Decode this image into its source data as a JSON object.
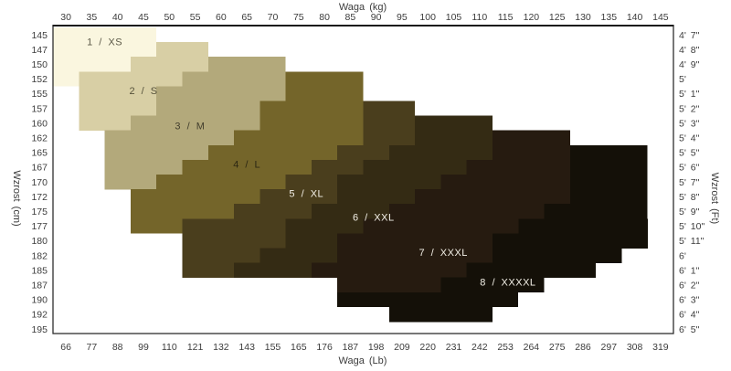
{
  "page": {
    "background": "#ffffff",
    "border_color": "#2e2e2e",
    "tick_color": "#3c3c3c"
  },
  "axes": {
    "top": {
      "title": "Waga  (kg)",
      "ticks": [
        30,
        35,
        40,
        45,
        50,
        55,
        60,
        65,
        70,
        75,
        80,
        85,
        90,
        95,
        100,
        105,
        110,
        115,
        120,
        125,
        130,
        135,
        140,
        145
      ]
    },
    "bottom": {
      "title": "Waga  (Lb)",
      "ticks": [
        66,
        77,
        88,
        99,
        110,
        121,
        132,
        143,
        155,
        165,
        176,
        187,
        198,
        209,
        220,
        231,
        242,
        253,
        264,
        275,
        286,
        297,
        308,
        319
      ]
    },
    "left": {
      "title": "Wzrost  (cm)",
      "ticks": [
        145,
        147,
        150,
        152,
        155,
        157,
        160,
        162,
        165,
        167,
        170,
        172,
        175,
        177,
        180,
        182,
        185,
        187,
        190,
        192,
        195
      ]
    },
    "right": {
      "title": "Wzrost  (Ft)",
      "ticks": [
        "4' 7\"",
        "4' 8\"",
        "4' 9\"",
        "5'",
        "5' 1\"",
        "5' 2\"",
        "5' 3\"",
        "5' 4\"",
        "5' 5\"",
        "5' 6\"",
        "5' 7\"",
        "5' 8\"",
        "5' 9\"",
        "5' 10\"",
        "5' 11\"",
        "6'",
        "6' 1\"",
        "6' 2\"",
        "6' 3\"",
        "6' 4\"",
        "6' 5\""
      ]
    }
  },
  "chart_data": {
    "type": "heatmap",
    "subtype": "stepped-size-region-map",
    "x_axis": {
      "label": "Waga (kg)",
      "range_kg": [
        27.5,
        147.5
      ],
      "secondary_label": "Waga (Lb)"
    },
    "y_axis": {
      "label": "Wzrost (cm)",
      "range_cm": [
        143.75,
        196.25
      ],
      "secondary_label": "Wzrost (Ft)",
      "row_height_cm": 2.5
    },
    "rows_format": "[heightRowIndex (0 = 145 cm row, step 2.5 cm), kgFrom, kgTo]",
    "bands": [
      {
        "num": 1,
        "size": "XS",
        "label": "1 / XS",
        "color": "#faf6df",
        "label_color": "#5d5a49",
        "label_at": {
          "kg": 37.5,
          "cm": 146.2
        },
        "rows": [
          [
            0,
            27.5,
            47.5
          ],
          [
            1,
            27.5,
            47.5
          ],
          [
            2,
            27.5,
            42.5
          ],
          [
            3,
            27.5,
            32.5
          ]
        ]
      },
      {
        "num": 2,
        "size": "S",
        "label": "2 / S",
        "color": "#d8cfa5",
        "label_color": "#56523b",
        "label_at": {
          "kg": 45,
          "cm": 154.5
        },
        "rows": [
          [
            1,
            47.5,
            57.5
          ],
          [
            2,
            42.5,
            57.5
          ],
          [
            3,
            32.5,
            52.5
          ],
          [
            4,
            32.5,
            47.5
          ],
          [
            5,
            32.5,
            47.5
          ],
          [
            6,
            32.5,
            42.5
          ]
        ]
      },
      {
        "num": 3,
        "size": "M",
        "label": "3 / M",
        "color": "#b3a97b",
        "label_color": "#423e2d",
        "label_at": {
          "kg": 54,
          "cm": 160.5
        },
        "rows": [
          [
            2,
            57.5,
            72.5
          ],
          [
            3,
            52.5,
            72.5
          ],
          [
            4,
            47.5,
            72.5
          ],
          [
            5,
            47.5,
            67.5
          ],
          [
            6,
            42.5,
            67.5
          ],
          [
            7,
            37.5,
            62.5
          ],
          [
            8,
            37.5,
            57.5
          ],
          [
            9,
            37.5,
            52.5
          ],
          [
            10,
            37.5,
            47.5
          ]
        ]
      },
      {
        "num": 4,
        "size": "L",
        "label": "4 / L",
        "color": "#74652a",
        "label_color": "#2c2713",
        "label_at": {
          "kg": 65,
          "cm": 167
        },
        "rows": [
          [
            3,
            72.5,
            87.5
          ],
          [
            4,
            72.5,
            87.5
          ],
          [
            5,
            67.5,
            87.5
          ],
          [
            6,
            67.5,
            87.5
          ],
          [
            7,
            62.5,
            87.5
          ],
          [
            8,
            57.5,
            82.5
          ],
          [
            9,
            52.5,
            77.5
          ],
          [
            10,
            47.5,
            72.5
          ],
          [
            11,
            42.5,
            67.5
          ],
          [
            12,
            42.5,
            62.5
          ],
          [
            13,
            42.5,
            52.5
          ]
        ]
      },
      {
        "num": 5,
        "size": "XL",
        "label": "5 / XL",
        "color": "#4a3e1d",
        "label_color": "#f3f0e7",
        "label_at": {
          "kg": 76.5,
          "cm": 172
        },
        "rows": [
          [
            5,
            87.5,
            97.5
          ],
          [
            6,
            87.5,
            97.5
          ],
          [
            7,
            87.5,
            97.5
          ],
          [
            8,
            82.5,
            92.5
          ],
          [
            9,
            77.5,
            87.5
          ],
          [
            10,
            72.5,
            82.5
          ],
          [
            11,
            67.5,
            82.5
          ],
          [
            12,
            62.5,
            77.5
          ],
          [
            13,
            52.5,
            72.5
          ],
          [
            14,
            52.5,
            72.5
          ],
          [
            15,
            52.5,
            67.5
          ],
          [
            16,
            52.5,
            62.5
          ]
        ]
      },
      {
        "num": 6,
        "size": "XXL",
        "label": "6 / XXL",
        "color": "#342b14",
        "label_color": "#f3f0e7",
        "label_at": {
          "kg": 89.5,
          "cm": 176
        },
        "rows": [
          [
            6,
            97.5,
            112.5
          ],
          [
            7,
            97.5,
            112.5
          ],
          [
            8,
            92.5,
            112.5
          ],
          [
            9,
            87.5,
            107.5
          ],
          [
            10,
            82.5,
            102.5
          ],
          [
            11,
            82.5,
            97.5
          ],
          [
            12,
            77.5,
            92.5
          ],
          [
            13,
            72.5,
            87.5
          ],
          [
            14,
            72.5,
            82.5
          ],
          [
            15,
            67.5,
            82.5
          ],
          [
            16,
            62.5,
            77.5
          ]
        ]
      },
      {
        "num": 7,
        "size": "XXXL",
        "label": "7 / XXXL",
        "color": "#261b10",
        "label_color": "#f3f0e7",
        "label_at": {
          "kg": 103,
          "cm": 182
        },
        "rows": [
          [
            7,
            112.5,
            127.5
          ],
          [
            8,
            112.5,
            127.5
          ],
          [
            9,
            107.5,
            127.5
          ],
          [
            10,
            102.5,
            127.5
          ],
          [
            11,
            97.5,
            127.5
          ],
          [
            12,
            92.5,
            122.5
          ],
          [
            13,
            87.5,
            117.5
          ],
          [
            14,
            82.5,
            112.5
          ],
          [
            15,
            82.5,
            112.5
          ],
          [
            16,
            77.5,
            107.5
          ],
          [
            17,
            82.5,
            102.5
          ]
        ]
      },
      {
        "num": 8,
        "size": "XXXXL",
        "label": "8 / XXXXL",
        "color": "#141008",
        "label_color": "#f3f0e7",
        "label_at": {
          "kg": 115.5,
          "cm": 187
        },
        "rows": [
          [
            8,
            127.5,
            142.5
          ],
          [
            9,
            127.5,
            142.5
          ],
          [
            10,
            127.5,
            142.5
          ],
          [
            11,
            127.5,
            142.5
          ],
          [
            12,
            122.5,
            142.5
          ],
          [
            13,
            117.5,
            142.5
          ],
          [
            14,
            112.5,
            142.5
          ],
          [
            15,
            112.5,
            137.5
          ],
          [
            16,
            107.5,
            132.5
          ],
          [
            17,
            102.5,
            122.5
          ],
          [
            18,
            82.5,
            117.5
          ],
          [
            19,
            92.5,
            112.5
          ]
        ]
      }
    ]
  }
}
